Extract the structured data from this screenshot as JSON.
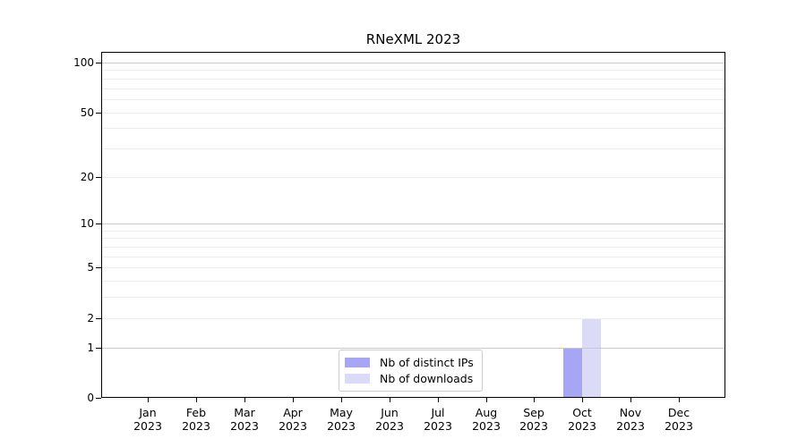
{
  "chart_data": {
    "type": "bar",
    "title": "RNeXML 2023",
    "x_year": "2023",
    "categories": [
      "Jan",
      "Feb",
      "Mar",
      "Apr",
      "May",
      "Jun",
      "Jul",
      "Aug",
      "Sep",
      "Oct",
      "Nov",
      "Dec"
    ],
    "series": [
      {
        "name": "Nb of distinct IPs",
        "color": "#a6a6f5",
        "values": [
          0,
          0,
          0,
          0,
          0,
          0,
          0,
          0,
          0,
          1,
          0,
          0
        ]
      },
      {
        "name": "Nb of downloads",
        "color": "#dbdbf8",
        "values": [
          0,
          0,
          0,
          0,
          0,
          0,
          0,
          0,
          0,
          2,
          0,
          0
        ]
      }
    ],
    "y_scale": "log1p",
    "ylim": [
      0,
      100
    ],
    "y_ticks": [
      100,
      50,
      20,
      10,
      5,
      2,
      1,
      0
    ],
    "y_gridlines_minor": [
      2,
      3,
      4,
      5,
      6,
      7,
      8,
      9,
      20,
      30,
      40,
      50,
      60,
      70,
      80,
      90
    ],
    "y_gridlines_major": [
      1,
      10,
      100
    ],
    "grid": true,
    "legend_position": "bottom-center"
  }
}
